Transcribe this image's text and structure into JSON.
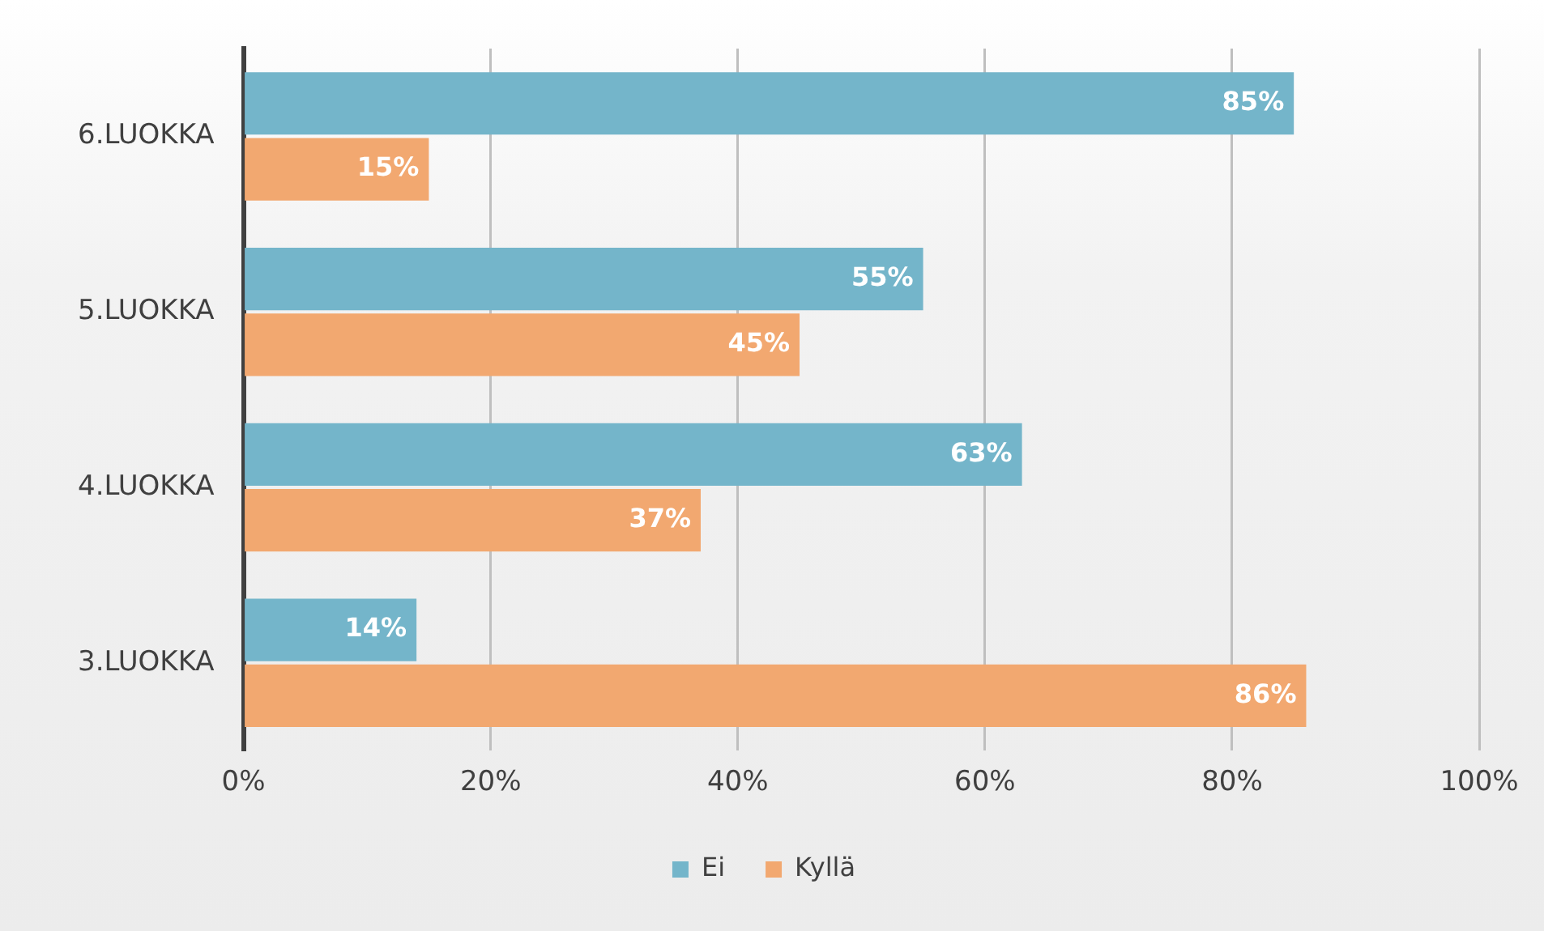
{
  "chart_data": {
    "type": "bar",
    "orientation": "horizontal",
    "categories": [
      "6.LUOKKA",
      "5.LUOKKA",
      "4.LUOKKA",
      "3.LUOKKA"
    ],
    "series": [
      {
        "name": "Ei",
        "color": "#74b5ca",
        "values": [
          85,
          55,
          63,
          14
        ],
        "value_labels": [
          "85%",
          "55%",
          "63%",
          "14%"
        ]
      },
      {
        "name": "Kyllä",
        "color": "#f2a870",
        "values": [
          15,
          45,
          37,
          86
        ],
        "value_labels": [
          "15%",
          "45%",
          "37%",
          "86%"
        ]
      }
    ],
    "xlim": [
      0,
      100
    ],
    "xticks": [
      {
        "value": 0,
        "label": "0%"
      },
      {
        "value": 20,
        "label": "20%"
      },
      {
        "value": 40,
        "label": "40%"
      },
      {
        "value": 60,
        "label": "60%"
      },
      {
        "value": 80,
        "label": "80%"
      },
      {
        "value": 100,
        "label": "100%"
      }
    ],
    "grid": "x",
    "legend": "bottom"
  }
}
